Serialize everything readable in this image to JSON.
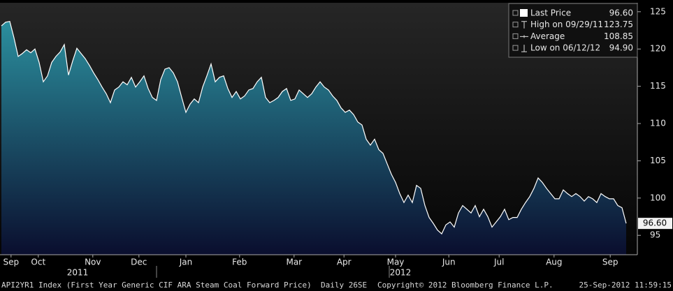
{
  "chart_data": {
    "type": "area",
    "values": [
      123.1,
      123.6,
      123.7,
      121.5,
      119.0,
      119.4,
      119.9,
      119.5,
      120.0,
      118.2,
      115.6,
      116.4,
      118.2,
      119.0,
      119.6,
      120.6,
      116.5,
      118.4,
      120.1,
      119.4,
      118.7,
      117.8,
      116.8,
      115.9,
      114.9,
      114.0,
      112.8,
      114.5,
      114.9,
      115.6,
      115.2,
      116.2,
      114.9,
      115.6,
      116.4,
      114.7,
      113.5,
      113.1,
      115.9,
      117.3,
      117.5,
      116.8,
      115.6,
      113.5,
      111.5,
      112.6,
      113.3,
      112.8,
      114.9,
      116.4,
      118.0,
      115.6,
      116.2,
      116.4,
      114.7,
      113.5,
      114.3,
      113.3,
      113.7,
      114.5,
      114.7,
      115.6,
      116.2,
      113.5,
      112.8,
      113.1,
      113.5,
      114.3,
      114.7,
      113.1,
      113.3,
      114.5,
      114.0,
      113.5,
      114.0,
      114.9,
      115.6,
      114.9,
      114.5,
      113.7,
      113.1,
      112.1,
      111.5,
      111.8,
      111.2,
      110.2,
      109.8,
      107.9,
      107.1,
      107.9,
      106.5,
      106.0,
      104.6,
      103.2,
      102.1,
      100.6,
      99.4,
      100.4,
      99.4,
      101.7,
      101.3,
      99.0,
      97.4,
      96.6,
      95.7,
      95.2,
      96.4,
      96.8,
      96.1,
      98.0,
      99.0,
      98.5,
      98.0,
      99.0,
      97.5,
      98.5,
      97.5,
      96.1,
      96.8,
      97.5,
      98.5,
      97.1,
      97.4,
      97.4,
      98.5,
      99.4,
      100.2,
      101.3,
      102.7,
      102.1,
      101.3,
      100.6,
      99.9,
      99.9,
      101.1,
      100.6,
      100.2,
      100.6,
      100.2,
      99.6,
      100.2,
      99.9,
      99.4,
      100.6,
      100.2,
      99.9,
      99.9,
      99.0,
      98.7,
      96.6
    ],
    "line_color": "#ffffff",
    "area_top_color": "#2b8f9e",
    "area_bottom_color": "#0a0e2e",
    "ylim": [
      92.4,
      126.2
    ],
    "yticks": [
      95,
      100,
      105,
      110,
      115,
      120,
      125
    ],
    "xticks": [
      {
        "value": 2.3,
        "label": "Sep"
      },
      {
        "value": 8.8,
        "label": "Oct"
      },
      {
        "value": 21.8,
        "label": "Nov"
      },
      {
        "value": 32.8,
        "label": "Dec"
      },
      {
        "value": 44,
        "label": "Jan"
      },
      {
        "value": 56.8,
        "label": "Feb"
      },
      {
        "value": 69.8,
        "label": "Mar"
      },
      {
        "value": 81.7,
        "label": "Apr"
      },
      {
        "value": 94,
        "label": "May"
      },
      {
        "value": 106.7,
        "label": "Jun"
      },
      {
        "value": 118.7,
        "label": "Jul"
      },
      {
        "value": 131.8,
        "label": "Aug"
      },
      {
        "value": 145.2,
        "label": "Sep"
      }
    ],
    "years": [
      "2011",
      "2012"
    ],
    "legend": [
      {
        "label": "Last Price",
        "value": 96.6,
        "value_label": "96.60"
      },
      {
        "label": "High on 09/29/11",
        "value": 123.75,
        "value_label": "123.75"
      },
      {
        "label": "Average",
        "value": 108.85,
        "value_label": "108.85"
      },
      {
        "label": "Low on 06/12/12",
        "value": 94.9,
        "value_label": "94.90"
      }
    ],
    "footer": {
      "index": "API2YR1 Index (First Year Generic CIF ARA Steam Coal Forward Price)  Daily 26SE",
      "copyright": "Copyright© 2012 Bloomberg Finance L.P.",
      "timestamp": "25-Sep-2012 11:59:15"
    }
  }
}
